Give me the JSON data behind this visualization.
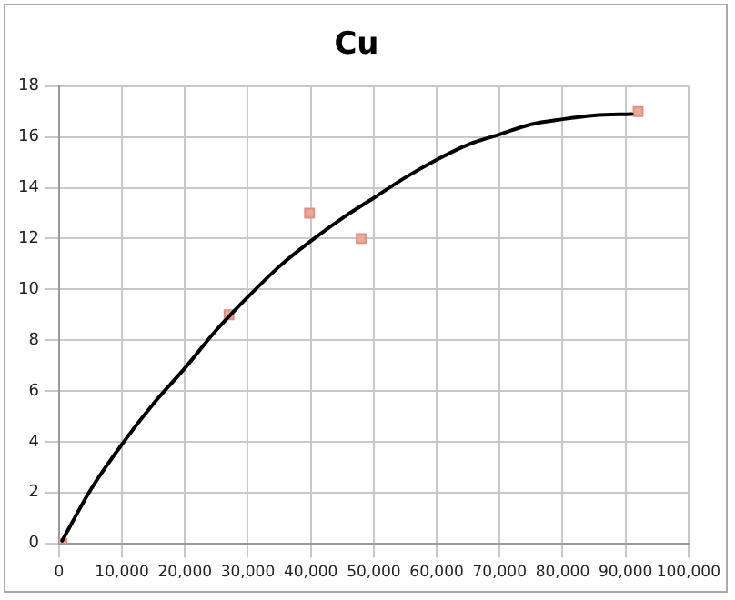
{
  "chart_data": {
    "type": "scatter",
    "title": "Cu",
    "xlim": [
      0,
      100000
    ],
    "xticks": [
      {
        "value": 0,
        "label": "0"
      },
      {
        "value": 10000,
        "label": "10,000"
      },
      {
        "value": 20000,
        "label": "20,000"
      },
      {
        "value": 30000,
        "label": "30,000"
      },
      {
        "value": 40000,
        "label": "40,000"
      },
      {
        "value": 50000,
        "label": "50,000"
      },
      {
        "value": 60000,
        "label": "60,000"
      },
      {
        "value": 70000,
        "label": "70,000"
      },
      {
        "value": 80000,
        "label": "80,000"
      },
      {
        "value": 90000,
        "label": "90,000"
      },
      {
        "value": 100000,
        "label": "100,000"
      }
    ],
    "ylim": [
      0,
      18
    ],
    "yticks": [
      0,
      2,
      4,
      6,
      8,
      10,
      12,
      14,
      16,
      18
    ],
    "grid": true,
    "legend": false,
    "series": [
      {
        "marker": "square",
        "color": "#eaa898",
        "x": [
          500,
          27000,
          39800,
          48000,
          92000
        ],
        "values": [
          0,
          9,
          13,
          12,
          17
        ]
      },
      {
        "type": "line",
        "marker": "none",
        "line_style": "solid",
        "color": "#000000",
        "x": [
          500,
          5000,
          10000,
          15000,
          20000,
          25000,
          30000,
          35000,
          40000,
          45000,
          50000,
          55000,
          60000,
          65000,
          70000,
          75000,
          80000,
          85000,
          91000
        ],
        "values": [
          0.1,
          2.1,
          3.9,
          5.5,
          6.9,
          8.4,
          9.7,
          10.9,
          11.9,
          12.8,
          13.6,
          14.4,
          15.1,
          15.7,
          16.1,
          16.5,
          16.7,
          16.85,
          16.9
        ]
      }
    ]
  }
}
